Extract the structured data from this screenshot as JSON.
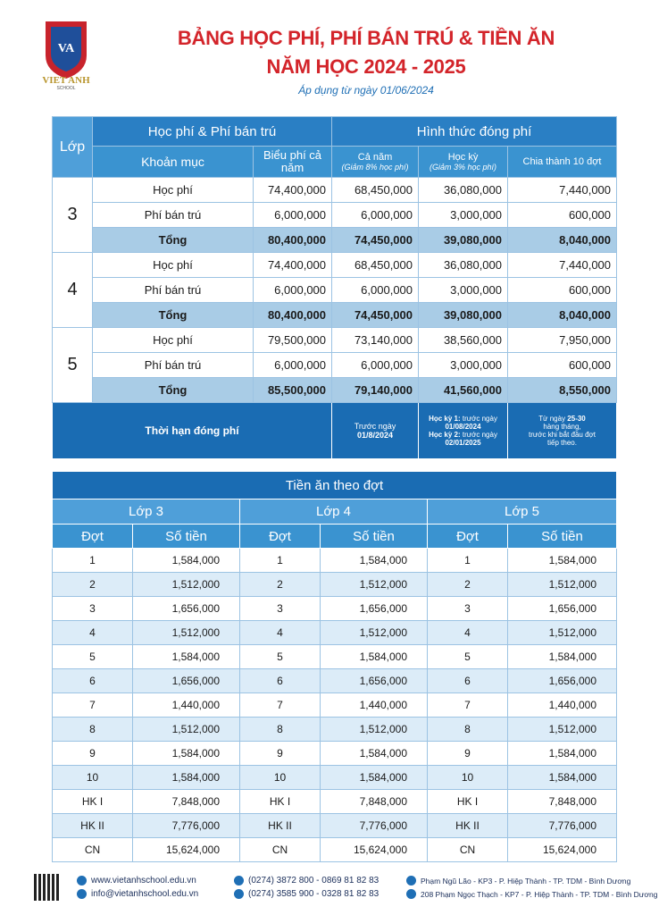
{
  "header": {
    "logo_text": "VA",
    "school": "VIET ANH",
    "school_sub": "SCHOOL",
    "title_line1": "BẢNG HỌC PHÍ, PHÍ BÁN TRÚ & TIỀN ĂN",
    "title_line2": "NĂM HỌC 2024 - 2025",
    "subtitle": "Áp dụng từ ngày 01/06/2024"
  },
  "fee_table": {
    "headers": {
      "lop": "Lớp",
      "group1": "Học phí & Phí bán trú",
      "group2": "Hình thức đóng phí",
      "khoan_muc": "Khoản mục",
      "bieu_phi": "Biểu phí cả năm",
      "ca_nam": "Cả năm",
      "ca_nam_note": "(Giảm 8% học phí)",
      "hoc_ky": "Học kỳ",
      "hoc_ky_note": "(Giảm 3% học phí)",
      "chia": "Chia thành 10 đợt"
    },
    "grades": [
      {
        "grade": "3",
        "rows": [
          [
            "Học phí",
            "74,400,000",
            "68,450,000",
            "36,080,000",
            "7,440,000"
          ],
          [
            "Phí bán trú",
            "6,000,000",
            "6,000,000",
            "3,000,000",
            "600,000"
          ],
          [
            "Tổng",
            "80,400,000",
            "74,450,000",
            "39,080,000",
            "8,040,000"
          ]
        ]
      },
      {
        "grade": "4",
        "rows": [
          [
            "Học phí",
            "74,400,000",
            "68,450,000",
            "36,080,000",
            "7,440,000"
          ],
          [
            "Phí bán trú",
            "6,000,000",
            "6,000,000",
            "3,000,000",
            "600,000"
          ],
          [
            "Tổng",
            "80,400,000",
            "74,450,000",
            "39,080,000",
            "8,040,000"
          ]
        ]
      },
      {
        "grade": "5",
        "rows": [
          [
            "Học phí",
            "79,500,000",
            "73,140,000",
            "38,560,000",
            "7,950,000"
          ],
          [
            "Phí bán trú",
            "6,000,000",
            "6,000,000",
            "3,000,000",
            "600,000"
          ],
          [
            "Tổng",
            "85,500,000",
            "79,140,000",
            "41,560,000",
            "8,550,000"
          ]
        ]
      }
    ],
    "deadline": {
      "label": "Thời hạn đóng phí",
      "cells": [
        [
          [
            {
              "text": "Trước ngày"
            }
          ],
          [
            {
              "text": "01/8/2024"
            }
          ]
        ],
        [
          [
            {
              "text": "Học kỳ 1:",
              "bold": true
            },
            {
              "text": " trước ngày"
            }
          ],
          [
            {
              "text": "01/08/2024",
              "bold": true
            }
          ],
          [
            {
              "text": "Học kỳ 2:",
              "bold": true
            },
            {
              "text": " trước ngày"
            }
          ],
          [
            {
              "text": "02/01/2025",
              "bold": true
            }
          ]
        ],
        [
          [
            {
              "text": "Từ ngày "
            },
            {
              "text": "25-30",
              "bold": true
            }
          ],
          [
            {
              "text": "hàng tháng,"
            }
          ],
          [
            {
              "text": "trước khi bắt đầu đợt"
            }
          ],
          [
            {
              "text": "tiếp theo."
            }
          ]
        ]
      ]
    }
  },
  "meal_table": {
    "title": "Tiền ăn theo đợt",
    "grades": [
      "Lớp 3",
      "Lớp 4",
      "Lớp 5"
    ],
    "col_dot": "Đợt",
    "col_amount": "Số tiền",
    "rows": [
      {
        "dot": "1",
        "amounts": [
          "1,584,000",
          "1,584,000",
          "1,584,000"
        ]
      },
      {
        "dot": "2",
        "amounts": [
          "1,512,000",
          "1,512,000",
          "1,512,000"
        ]
      },
      {
        "dot": "3",
        "amounts": [
          "1,656,000",
          "1,656,000",
          "1,656,000"
        ]
      },
      {
        "dot": "4",
        "amounts": [
          "1,512,000",
          "1,512,000",
          "1,512,000"
        ]
      },
      {
        "dot": "5",
        "amounts": [
          "1,584,000",
          "1,584,000",
          "1,584,000"
        ]
      },
      {
        "dot": "6",
        "amounts": [
          "1,656,000",
          "1,656,000",
          "1,656,000"
        ]
      },
      {
        "dot": "7",
        "amounts": [
          "1,440,000",
          "1,440,000",
          "1,440,000"
        ]
      },
      {
        "dot": "8",
        "amounts": [
          "1,512,000",
          "1,512,000",
          "1,512,000"
        ]
      },
      {
        "dot": "9",
        "amounts": [
          "1,584,000",
          "1,584,000",
          "1,584,000"
        ]
      },
      {
        "dot": "10",
        "amounts": [
          "1,584,000",
          "1,584,000",
          "1,584,000"
        ]
      },
      {
        "dot": "HK I",
        "amounts": [
          "7,848,000",
          "7,848,000",
          "7,848,000"
        ]
      },
      {
        "dot": "HK II",
        "amounts": [
          "7,776,000",
          "7,776,000",
          "7,776,000"
        ]
      },
      {
        "dot": "CN",
        "amounts": [
          "15,624,000",
          "15,624,000",
          "15,624,000"
        ]
      }
    ]
  },
  "footer": {
    "website": "www.vietanhschool.edu.vn",
    "email": "info@vietanhschool.edu.vn",
    "phone1": "(0274) 3872 800 - 0869 81 82 83",
    "phone2": "(0274) 3585 900 - 0328 81 82 83",
    "address1": "Phạm Ngũ Lão - KP3 - P. Hiệp Thành - TP. TDM - Bình Dương",
    "address2": "208 Phạm Ngọc Thạch - KP7 - P. Hiệp Thành - TP. TDM - Bình Dương"
  }
}
